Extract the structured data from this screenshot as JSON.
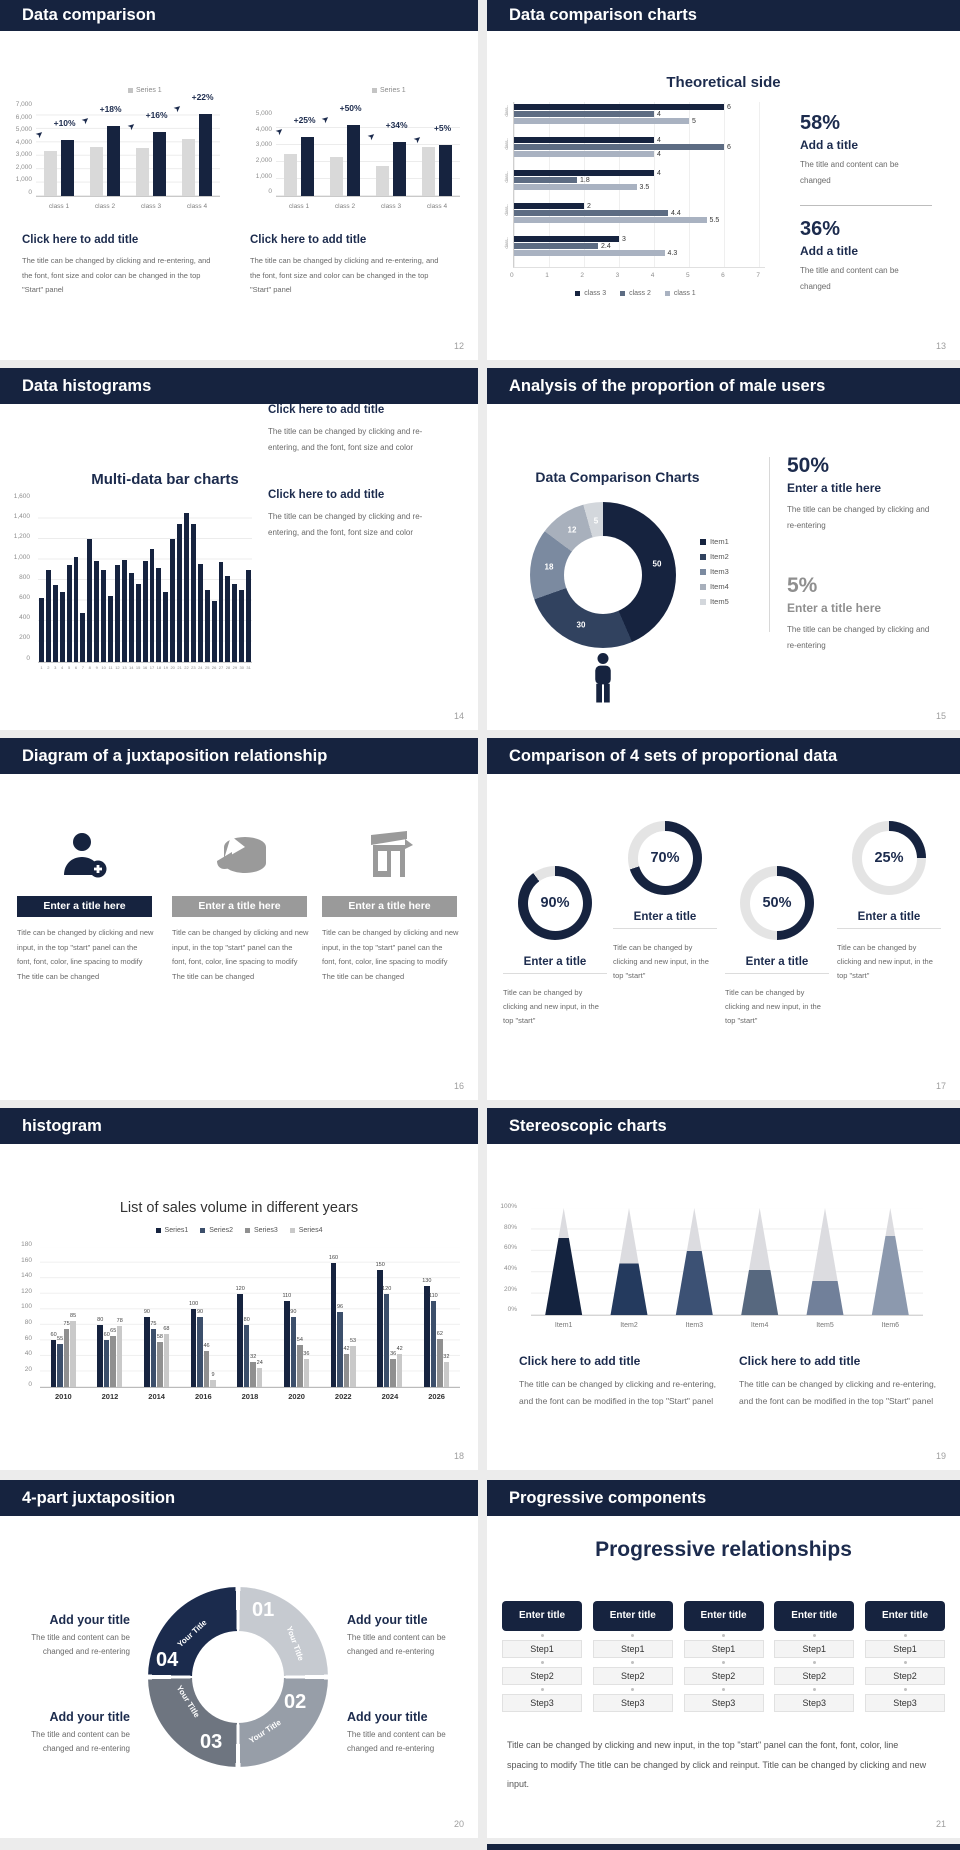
{
  "page": {
    "background": "#ececec",
    "slide_background": "#ffffff",
    "accent_navy": "#16233f"
  },
  "icons": {
    "growth_arrow": "➤"
  },
  "slides": [
    {
      "header": "Data comparison",
      "page_number": "12",
      "blocks": [
        {
          "heading": "Click here to add title",
          "body": "The title can be changed by clicking and re-entering, and the font, font size and color can be changed in the top \"Start\" panel"
        },
        {
          "heading": "Click here to add title",
          "body": "The title can be changed by clicking and re-entering, and the font, font size and color can be changed in the top \"Start\" panel"
        }
      ]
    },
    {
      "header": "Data comparison charts",
      "page_number": "13",
      "chart_title": "Theoretical side",
      "stats": [
        {
          "pct": "58%",
          "title": "Add a title",
          "body": "The title and content can be changed"
        },
        {
          "pct": "36%",
          "title": "Add a title",
          "body": "The title and content can be changed"
        }
      ]
    },
    {
      "header": "Data histograms",
      "page_number": "14",
      "chart_title": "Multi-data bar charts",
      "blocks": [
        {
          "heading": "Click here to add title",
          "body": "The title can be changed by clicking and re-entering, and the font, font size and color"
        },
        {
          "heading": "Click here to add title",
          "body": "The title can be changed by clicking and re-entering, and the font, font size and color"
        }
      ]
    },
    {
      "header": "Analysis of the proportion of male users",
      "page_number": "15",
      "chart_title": "Data Comparison Charts",
      "stats": [
        {
          "pct": "50%",
          "title": "Enter a title here",
          "body": "The title can be changed by clicking and re-entering"
        },
        {
          "pct": "5%",
          "title": "Enter a title here",
          "body": "The title can be changed by clicking and re-entering"
        }
      ]
    },
    {
      "header": "Diagram of a juxtaposition relationship",
      "page_number": "16",
      "items": [
        {
          "icon": "person-add-icon",
          "bar_label": "Enter a title here",
          "body": "Title can be changed by clicking and new input, in the top \"start\" panel can the font, font, color, line spacing to modify The title can be changed"
        },
        {
          "icon": "pie-3d-icon",
          "bar_label": "Enter a title here",
          "body": "Title can be changed by clicking and new input, in the top \"start\" panel can the font, font, color, line spacing to modify The title can be changed"
        },
        {
          "icon": "store-icon",
          "bar_label": "Enter a title here",
          "body": "Title can be changed by clicking and new input, in the top \"start\" panel can the font, font, color, line spacing to modify The title can be changed"
        }
      ]
    },
    {
      "header": "Comparison of 4 sets of proportional data",
      "page_number": "17",
      "rings": [
        {
          "pct": "90%",
          "title": "Enter a title",
          "body": "Title can be changed by clicking and new input, in the top \"start\""
        },
        {
          "pct": "70%",
          "title": "Enter a title",
          "body": "Title can be changed by clicking and new input, in the top \"start\""
        },
        {
          "pct": "50%",
          "title": "Enter a title",
          "body": "Title can be changed by clicking and new input, in the top \"start\""
        },
        {
          "pct": "25%",
          "title": "Enter a title",
          "body": "Title can be changed by clicking and new input, in the top \"start\""
        }
      ]
    },
    {
      "header": "histogram",
      "page_number": "18",
      "chart_title": "List of sales volume in different years"
    },
    {
      "header": "Stereoscopic charts",
      "page_number": "19",
      "blocks": [
        {
          "heading": "Click here to add title",
          "body": "The title can be changed by clicking and re-entering, and the font can be modified in the top \"Start\" panel"
        },
        {
          "heading": "Click here to add title",
          "body": "The title can be changed by clicking and re-entering, and the font can be modified in the top \"Start\" panel"
        }
      ]
    },
    {
      "header": "4-part juxtaposition",
      "page_number": "20",
      "texts": [
        {
          "heading": "Add your title",
          "body": "The title and content can be changed and re-entering"
        },
        {
          "heading": "Add your title",
          "body": "The title and content can be changed and re-entering"
        },
        {
          "heading": "Add your title",
          "body": "The title and content can be changed and re-entering"
        },
        {
          "heading": "Add your title",
          "body": "The title and content can be changed and re-entering"
        }
      ]
    },
    {
      "header": "Progressive components",
      "page_number": "21",
      "main_title": "Progressive relationships",
      "columns": [
        {
          "header": "Enter title",
          "steps": [
            "Step1",
            "Step2",
            "Step3"
          ]
        },
        {
          "header": "Enter title",
          "steps": [
            "Step1",
            "Step2",
            "Step3"
          ]
        },
        {
          "header": "Enter title",
          "steps": [
            "Step1",
            "Step2",
            "Step3"
          ]
        },
        {
          "header": "Enter title",
          "steps": [
            "Step1",
            "Step2",
            "Step3"
          ]
        },
        {
          "header": "Enter title",
          "steps": [
            "Step1",
            "Step2",
            "Step3"
          ]
        }
      ],
      "paragraph": "Title can be changed by clicking and new input, in the top \"start\" panel can the font, font, color, line spacing to modify The title can be changed by click and reinput. Title can be changed by clicking and new input."
    }
  ],
  "chart_data": [
    {
      "id": "slide12-left",
      "type": "bar",
      "legend": "Series 1",
      "categories": [
        "class 1",
        "class 2",
        "class 3",
        "class 4"
      ],
      "series": [
        {
          "name": "base",
          "color": "#d9d9d9",
          "values": [
            3400,
            3700,
            3600,
            4300
          ]
        },
        {
          "name": "Series 1",
          "color": "#16233f",
          "values": [
            4200,
            5300,
            4800,
            6200
          ]
        }
      ],
      "growth_labels": [
        "+10%",
        "+18%",
        "+16%",
        "+22%"
      ],
      "ylim": [
        0,
        7000
      ],
      "y_ticks": [
        "7,000",
        "6,000",
        "5,000",
        "4,000",
        "3,000",
        "2,000",
        "1,000",
        "0"
      ]
    },
    {
      "id": "slide12-right",
      "type": "bar",
      "legend": "Series 1",
      "categories": [
        "class 1",
        "class 2",
        "class 3",
        "class 4"
      ],
      "series": [
        {
          "name": "base",
          "color": "#d9d9d9",
          "values": [
            2500,
            2300,
            1800,
            2900
          ]
        },
        {
          "name": "Series 1",
          "color": "#16233f",
          "values": [
            3500,
            4200,
            3200,
            3050
          ]
        }
      ],
      "growth_labels": [
        "+25%",
        "+50%",
        "+34%",
        "+5%"
      ],
      "ylim": [
        0,
        5000
      ],
      "y_ticks": [
        "5,000",
        "4,000",
        "3,000",
        "2,000",
        "1,000",
        "0"
      ]
    },
    {
      "id": "slide13",
      "type": "hbar",
      "title": "Theoretical side",
      "group_labels": [
        "class...",
        "class...",
        "class...",
        "class...",
        "class..."
      ],
      "series": [
        {
          "name": "class 3",
          "color": "#16233f",
          "values": [
            6,
            4,
            4,
            2,
            3
          ]
        },
        {
          "name": "class 2",
          "color": "#5d6c83",
          "values": [
            4,
            6,
            1.8,
            4.4,
            2.4
          ]
        },
        {
          "name": "class 1",
          "color": "#a9b2c1",
          "values": [
            5,
            4,
            3.5,
            5.5,
            4.3
          ]
        }
      ],
      "xlim": [
        0,
        7
      ],
      "x_ticks": [
        "0",
        "1",
        "2",
        "3",
        "4",
        "5",
        "6",
        "7"
      ]
    },
    {
      "id": "slide14",
      "type": "bar",
      "title": "Multi-data bar charts",
      "color": "#16233f",
      "x_labels": [
        "1",
        "2",
        "3",
        "4",
        "5",
        "6",
        "7",
        "8",
        "9",
        "10",
        "11",
        "12",
        "13",
        "14",
        "15",
        "16",
        "17",
        "18",
        "19",
        "20",
        "21",
        "22",
        "23",
        "24",
        "25",
        "26",
        "27",
        "28",
        "29",
        "30",
        "31"
      ],
      "values": [
        620,
        900,
        750,
        680,
        950,
        1020,
        480,
        1200,
        990,
        900,
        640,
        950,
        1000,
        870,
        760,
        990,
        1100,
        920,
        680,
        1200,
        1350,
        1450,
        1350,
        960,
        700,
        600,
        980,
        840,
        760,
        700,
        900
      ],
      "ylim": [
        0,
        1600
      ],
      "y_ticks": [
        "1,600",
        "1,400",
        "1,200",
        "1,000",
        "800",
        "600",
        "400",
        "200",
        "0"
      ]
    },
    {
      "id": "slide15",
      "type": "donut",
      "title": "Data Comparison Charts",
      "labels": [
        "Item1",
        "Item2",
        "Item3",
        "Item4",
        "Item5"
      ],
      "values": [
        50,
        30,
        18,
        12,
        5
      ],
      "colors": [
        "#16233f",
        "#31425f",
        "#7b8aa0",
        "#a8b0bc",
        "#d3d7dc"
      ]
    },
    {
      "id": "slide17",
      "type": "ring",
      "values": [
        90,
        70,
        50,
        25
      ],
      "color": "#16233f",
      "track": "#e4e4e4"
    },
    {
      "id": "slide18",
      "type": "bar",
      "title": "List of sales volume in different years",
      "categories": [
        "2010",
        "2012",
        "2014",
        "2016",
        "2018",
        "2020",
        "2022",
        "2024",
        "2026"
      ],
      "series": [
        {
          "name": "Series1",
          "color": "#16233f",
          "values": [
            60,
            80,
            90,
            100,
            120,
            110,
            160,
            150,
            130
          ]
        },
        {
          "name": "Series2",
          "color": "#3c4f6b",
          "values": [
            55,
            60,
            75,
            90,
            80,
            90,
            96,
            120,
            110
          ]
        },
        {
          "name": "Series3",
          "color": "#909090",
          "values": [
            75,
            65,
            58,
            46,
            32,
            54,
            42,
            36,
            62
          ]
        },
        {
          "name": "Series4",
          "color": "#c9c9c9",
          "values": [
            85,
            78,
            68,
            9,
            24,
            36,
            53,
            42,
            32
          ]
        }
      ],
      "ylim": [
        0,
        180
      ],
      "y_ticks": [
        "180",
        "160",
        "140",
        "120",
        "100",
        "80",
        "60",
        "40",
        "20",
        "0"
      ]
    },
    {
      "id": "slide19",
      "type": "cone",
      "categories": [
        "Item1",
        "Item2",
        "Item3",
        "Item4",
        "Item5",
        "Item6"
      ],
      "values_pct": [
        72,
        48,
        60,
        42,
        32,
        74
      ],
      "colors": [
        "#14233f",
        "#243a5e",
        "#3c5174",
        "#57687f",
        "#71809a",
        "#8c99ae"
      ],
      "track": "#dcdce0",
      "y_ticks": [
        "100%",
        "80%",
        "60%",
        "40%",
        "20%",
        "0%"
      ]
    },
    {
      "id": "slide20",
      "type": "pie",
      "segments": [
        {
          "num": "01",
          "label": "Your Title",
          "color": "#c6cad0"
        },
        {
          "num": "02",
          "label": "Your Title",
          "color": "#979ea8"
        },
        {
          "num": "03",
          "label": "Your Title",
          "color": "#6e7580"
        },
        {
          "num": "04",
          "label": "Your Title",
          "color": "#1b2b4d"
        }
      ]
    }
  ]
}
